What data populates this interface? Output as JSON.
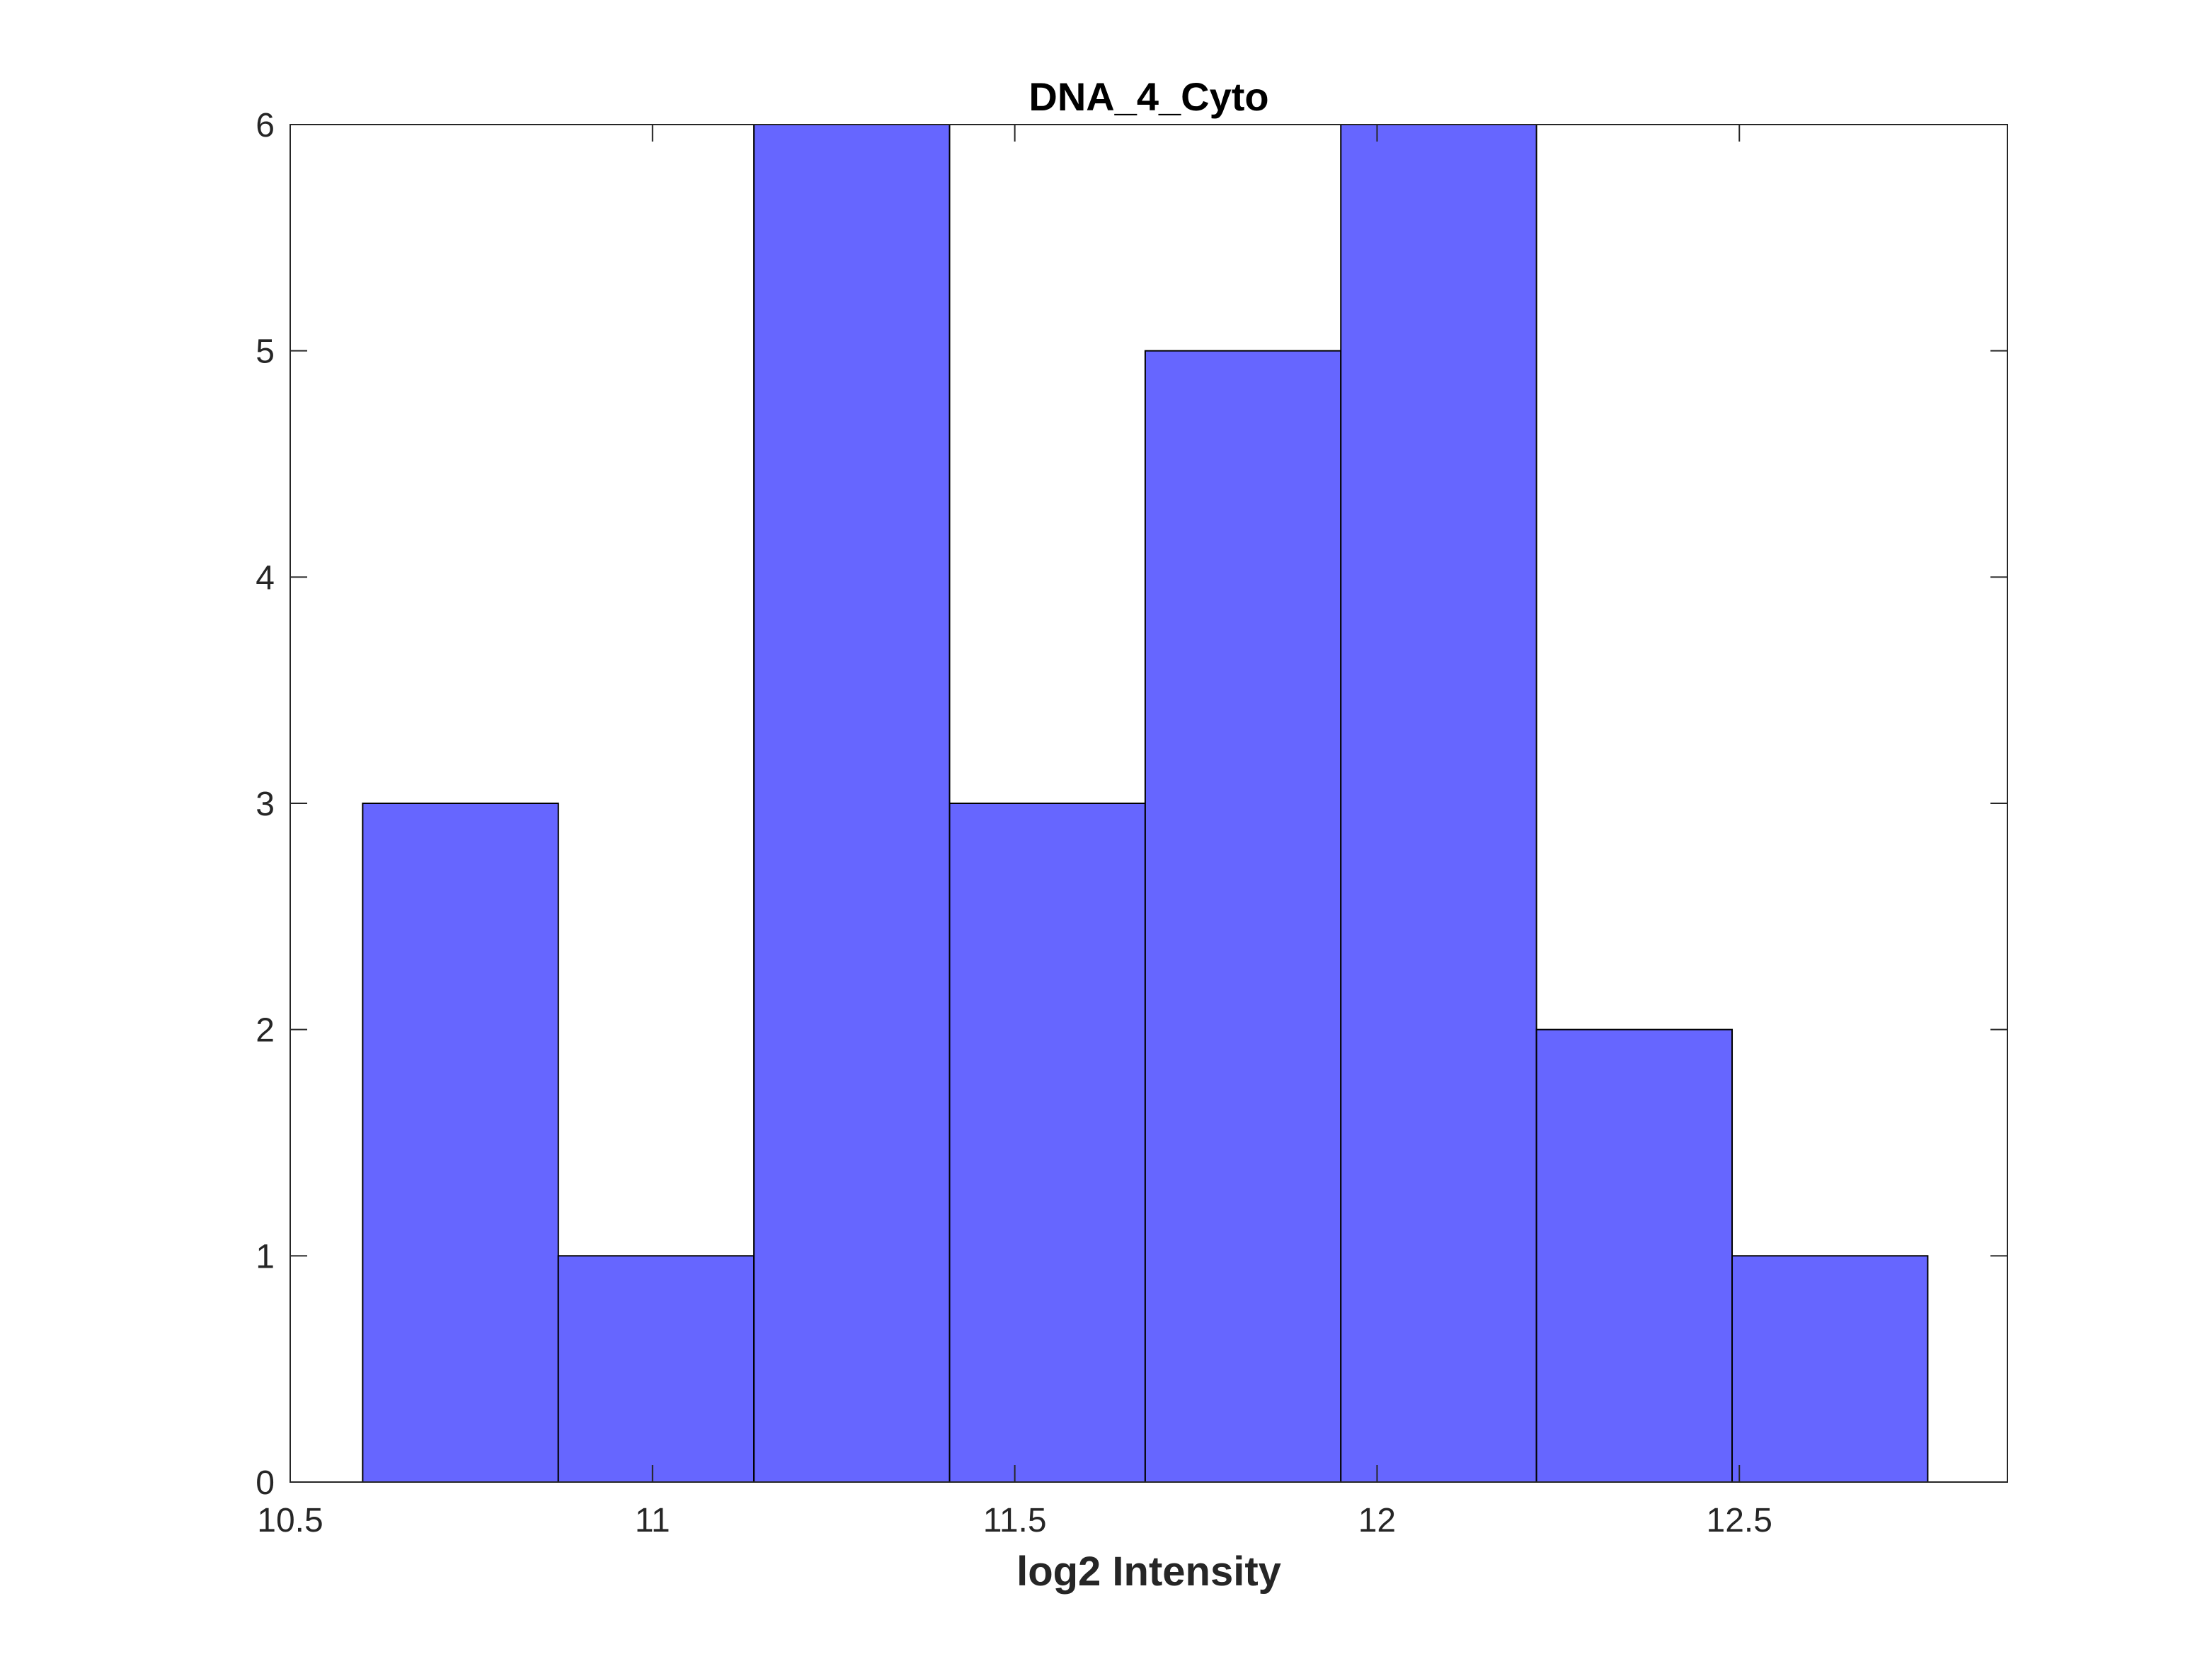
{
  "chart_data": {
    "type": "bar",
    "title": "DNA_4_Cyto",
    "xlabel": "log2 Intensity",
    "ylabel": "",
    "xlim": [
      10.5,
      12.87
    ],
    "ylim": [
      0,
      6
    ],
    "xticks": [
      10.5,
      11,
      11.5,
      12,
      12.5
    ],
    "xtick_labels": [
      "10.5",
      "11",
      "11.5",
      "12",
      "12.5"
    ],
    "yticks": [
      0,
      1,
      2,
      3,
      4,
      5,
      6
    ],
    "ytick_labels": [
      "0",
      "1",
      "2",
      "3",
      "4",
      "5",
      "6"
    ],
    "bin_edges": [
      10.6,
      10.87,
      11.14,
      11.41,
      11.68,
      11.95,
      12.22,
      12.49,
      12.76
    ],
    "values": [
      3,
      1,
      6,
      3,
      5,
      6,
      2,
      1
    ],
    "grid": false,
    "bar_color": "#6666ff",
    "edge_color": "#000000"
  }
}
